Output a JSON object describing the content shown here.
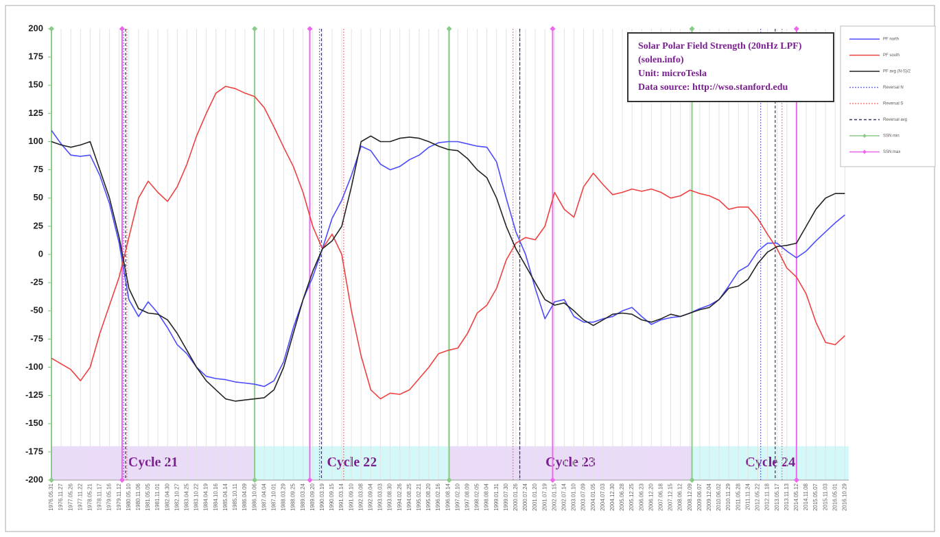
{
  "chart_data": {
    "type": "line",
    "title_lines": [
      "Solar Polar Field Strength (20nHz LPF)",
      "(solen.info)",
      "Unit: microTesla",
      "Data source: http://wso.stanford.edu"
    ],
    "categories": [
      "1976.05.31",
      "1976.11.27",
      "1977.05.26",
      "1977.11.22",
      "1978.05.21",
      "1978.11.17",
      "1979.05.16",
      "1979.11.12",
      "1980.05.10",
      "1980.11.06",
      "1981.05.05",
      "1981.11.01",
      "1982.04.30",
      "1982.10.27",
      "1983.04.25",
      "1983.10.22",
      "1984.04.19",
      "1984.10.16",
      "1985.04.14",
      "1985.10.11",
      "1986.04.09",
      "1986.10.06",
      "1987.04.04",
      "1987.10.01",
      "1988.03.29",
      "1988.09.25",
      "1989.03.24",
      "1989.09.20",
      "1990.03.19",
      "1990.09.15",
      "1991.03.14",
      "1991.09.10",
      "1992.03.08",
      "1992.09.04",
      "1993.03.03",
      "1993.08.30",
      "1994.02.26",
      "1994.08.25",
      "1995.02.21",
      "1995.08.20",
      "1996.02.16",
      "1996.08.14",
      "1997.02.10",
      "1997.08.09",
      "1998.02.05",
      "1998.08.04",
      "1999.01.31",
      "1999.07.30",
      "2000.01.26",
      "2000.07.24",
      "2001.01.20",
      "2001.07.19",
      "2002.01.15",
      "2002.07.14",
      "2003.01.10",
      "2003.07.09",
      "2004.01.05",
      "2004.07.03",
      "2004.12.30",
      "2005.06.28",
      "2005.12.25",
      "2006.06.23",
      "2006.12.20",
      "2007.06.18",
      "2007.12.15",
      "2008.06.12",
      "2008.12.09",
      "2009.06.07",
      "2009.12.04",
      "2010.06.02",
      "2010.11.29",
      "2011.05.28",
      "2011.11.24",
      "2012.05.22",
      "2012.11.18",
      "2013.05.17",
      "2013.11.13",
      "2014.05.12",
      "2014.11.08",
      "2015.05.07",
      "2015.11.03",
      "2016.05.01",
      "2016.10.29"
    ],
    "series": [
      {
        "name": "PF north",
        "color": "#4a4aff",
        "values": [
          110,
          98,
          88,
          87,
          88,
          70,
          45,
          10,
          -40,
          -55,
          -42,
          -52,
          -65,
          -80,
          -88,
          -100,
          -108,
          -110,
          -111,
          -113,
          -114,
          -115,
          -117,
          -112,
          -95,
          -65,
          -40,
          -20,
          5,
          32,
          48,
          70,
          96,
          92,
          80,
          75,
          78,
          84,
          88,
          95,
          99,
          100,
          100,
          98,
          96,
          95,
          82,
          50,
          20,
          0,
          -30,
          -57,
          -42,
          -40,
          -55,
          -60,
          -60,
          -57,
          -55,
          -50,
          -47,
          -55,
          -62,
          -58,
          -56,
          -55,
          -52,
          -48,
          -45,
          -40,
          -28,
          -15,
          -10,
          3,
          10,
          10,
          3,
          -3,
          3,
          12,
          20,
          28,
          35
        ]
      },
      {
        "name": "PF south",
        "color": "#ee4040",
        "values": [
          -92,
          -97,
          -102,
          -112,
          -100,
          -70,
          -45,
          -20,
          15,
          50,
          65,
          55,
          47,
          60,
          80,
          105,
          125,
          143,
          149,
          147,
          143,
          140,
          130,
          113,
          95,
          78,
          55,
          25,
          5,
          18,
          0,
          -50,
          -90,
          -120,
          -128,
          -123,
          -124,
          -120,
          -110,
          -100,
          -88,
          -85,
          -83,
          -70,
          -52,
          -45,
          -30,
          -5,
          10,
          15,
          13,
          25,
          55,
          40,
          33,
          60,
          72,
          62,
          53,
          55,
          58,
          56,
          58,
          55,
          50,
          52,
          57,
          54,
          52,
          48,
          40,
          42,
          42,
          32,
          18,
          5,
          -12,
          -20,
          -35,
          -60,
          -78,
          -80,
          -72
        ]
      },
      {
        "name": "PF avg (N-S)/2",
        "color": "#222222",
        "values": [
          100,
          97,
          95,
          97,
          100,
          75,
          50,
          15,
          -30,
          -48,
          -52,
          -53,
          -58,
          -70,
          -85,
          -100,
          -112,
          -120,
          -128,
          -130,
          -129,
          -128,
          -127,
          -120,
          -100,
          -70,
          -40,
          -15,
          5,
          12,
          25,
          60,
          100,
          105,
          100,
          100,
          103,
          104,
          103,
          100,
          96,
          93,
          92,
          85,
          75,
          68,
          50,
          25,
          5,
          -10,
          -25,
          -40,
          -45,
          -43,
          -50,
          -58,
          -63,
          -58,
          -53,
          -52,
          -53,
          -58,
          -60,
          -57,
          -53,
          -55,
          -52,
          -49,
          -47,
          -40,
          -30,
          -28,
          -22,
          -8,
          2,
          7,
          8,
          10,
          25,
          40,
          50,
          54,
          54
        ]
      }
    ],
    "markers": [
      {
        "name": "Reversal N",
        "color": "#6b6bd6",
        "dash": "2,2",
        "x": [
          7.45,
          27.7,
          48.4,
          73.3
        ]
      },
      {
        "name": "Reversal S",
        "color": "#f07a7a",
        "dash": "2,2",
        "x": [
          7.8,
          30.2,
          47.7,
          75.5
        ]
      },
      {
        "name": "Reversal avg",
        "color": "#333366",
        "dash": "4,3",
        "x": [
          7.66,
          27.9,
          48.4,
          74.8
        ]
      },
      {
        "name": "SSN min",
        "color": "#88cc88",
        "dash": "none",
        "x": [
          0,
          21.0,
          41.1,
          66.2
        ]
      },
      {
        "name": "SSN max",
        "color": "#ee66ee",
        "dash": "none",
        "x": [
          7.3,
          26.7,
          51.8,
          77.0
        ]
      }
    ],
    "cycles": [
      {
        "label": "Cycle 21",
        "range": [
          0,
          21.0
        ],
        "color": "#eadcf8"
      },
      {
        "label": "Cycle 22",
        "range": [
          21.0,
          41.1
        ],
        "color": "#d4f7f7"
      },
      {
        "label": "Cycle 23",
        "range": [
          41.1,
          66.2
        ],
        "color": "#eadcf8"
      },
      {
        "label": "Cycle 24",
        "range": [
          66.2,
          82.4
        ],
        "color": "#d4f7f7"
      }
    ],
    "cycle_band": [
      -200,
      -170
    ],
    "xlim": [
      0,
      82.4
    ],
    "ylim": [
      -200,
      200
    ],
    "yticks": [
      -200,
      -175,
      -150,
      -125,
      -100,
      -75,
      -50,
      -25,
      0,
      25,
      50,
      75,
      100,
      125,
      150,
      175,
      200
    ],
    "grid": true
  }
}
